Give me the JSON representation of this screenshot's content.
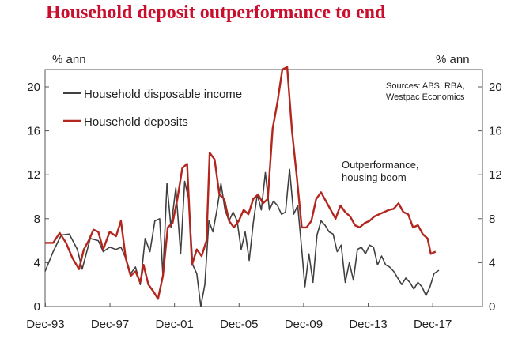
{
  "title": "Household deposit outperformance to end",
  "colors": {
    "title": "#c8102e",
    "income": "#404040",
    "deposits": "#b3261e"
  },
  "chart_data": {
    "type": "line",
    "x_label_left": "% ann",
    "y_label_right": "% ann",
    "y_range": [
      0,
      22
    ],
    "y_ticks": [
      0,
      4,
      8,
      12,
      16,
      20
    ],
    "x_range": [
      1993.9,
      2021.0
    ],
    "x_ticks": [
      "Dec-93",
      "Dec-97",
      "Dec-01",
      "Dec-05",
      "Dec-09",
      "Dec-13",
      "Dec-17"
    ],
    "x_tick_years": [
      1993.92,
      1997.92,
      2001.92,
      2005.92,
      2009.92,
      2013.92,
      2017.92
    ],
    "legend": [
      "Household disposable income",
      "Household deposits"
    ],
    "sources": [
      "Sources: ABS, RBA,",
      "Westpac Economics"
    ],
    "annotation": [
      "Outperformance,",
      "housing boom"
    ],
    "grid": false,
    "series": [
      {
        "name": "Household disposable income",
        "color": "#404040",
        "points": [
          [
            1993.9,
            3.2
          ],
          [
            1994.4,
            5.0
          ],
          [
            1994.9,
            6.5
          ],
          [
            1995.4,
            6.6
          ],
          [
            1995.9,
            5.2
          ],
          [
            1996.2,
            3.4
          ],
          [
            1996.7,
            6.2
          ],
          [
            1997.2,
            6.0
          ],
          [
            1997.5,
            5.0
          ],
          [
            1997.9,
            5.4
          ],
          [
            1998.3,
            5.2
          ],
          [
            1998.6,
            5.4
          ],
          [
            1998.9,
            4.4
          ],
          [
            1999.2,
            3.0
          ],
          [
            1999.5,
            3.6
          ],
          [
            1999.8,
            2.0
          ],
          [
            2000.1,
            6.2
          ],
          [
            2000.4,
            5.0
          ],
          [
            2000.7,
            7.8
          ],
          [
            2001.0,
            8.0
          ],
          [
            2001.2,
            2.8
          ],
          [
            2001.45,
            11.2
          ],
          [
            2001.7,
            7.2
          ],
          [
            2002.0,
            10.8
          ],
          [
            2002.3,
            4.8
          ],
          [
            2002.55,
            11.4
          ],
          [
            2002.8,
            9.8
          ],
          [
            2003.05,
            3.8
          ],
          [
            2003.3,
            3.0
          ],
          [
            2003.55,
            0.0
          ],
          [
            2003.8,
            2.0
          ],
          [
            2004.05,
            7.8
          ],
          [
            2004.3,
            6.8
          ],
          [
            2004.55,
            8.8
          ],
          [
            2004.8,
            11.2
          ],
          [
            2005.05,
            8.8
          ],
          [
            2005.3,
            7.8
          ],
          [
            2005.55,
            8.6
          ],
          [
            2005.8,
            7.8
          ],
          [
            2006.05,
            5.2
          ],
          [
            2006.3,
            6.8
          ],
          [
            2006.55,
            4.2
          ],
          [
            2006.8,
            7.6
          ],
          [
            2007.05,
            10.2
          ],
          [
            2007.3,
            8.8
          ],
          [
            2007.55,
            12.2
          ],
          [
            2007.8,
            8.8
          ],
          [
            2008.05,
            9.6
          ],
          [
            2008.3,
            9.2
          ],
          [
            2008.55,
            8.4
          ],
          [
            2008.8,
            8.6
          ],
          [
            2009.05,
            12.5
          ],
          [
            2009.3,
            8.4
          ],
          [
            2009.55,
            9.2
          ],
          [
            2009.8,
            5.2
          ],
          [
            2010.0,
            1.8
          ],
          [
            2010.25,
            4.8
          ],
          [
            2010.5,
            2.2
          ],
          [
            2010.75,
            6.5
          ],
          [
            2011.0,
            7.8
          ],
          [
            2011.25,
            7.4
          ],
          [
            2011.5,
            6.8
          ],
          [
            2011.75,
            6.6
          ],
          [
            2012.0,
            5.0
          ],
          [
            2012.25,
            5.6
          ],
          [
            2012.5,
            2.2
          ],
          [
            2012.75,
            4.0
          ],
          [
            2013.0,
            2.4
          ],
          [
            2013.25,
            5.2
          ],
          [
            2013.5,
            5.4
          ],
          [
            2013.75,
            4.8
          ],
          [
            2014.0,
            5.6
          ],
          [
            2014.25,
            5.4
          ],
          [
            2014.5,
            3.8
          ],
          [
            2014.75,
            4.6
          ],
          [
            2015.0,
            3.8
          ],
          [
            2015.25,
            3.6
          ],
          [
            2015.5,
            3.2
          ],
          [
            2015.75,
            2.6
          ],
          [
            2016.0,
            2.0
          ],
          [
            2016.25,
            2.6
          ],
          [
            2016.5,
            2.2
          ],
          [
            2016.75,
            1.6
          ],
          [
            2017.0,
            2.2
          ],
          [
            2017.25,
            1.8
          ],
          [
            2017.5,
            1.0
          ],
          [
            2017.75,
            1.8
          ],
          [
            2018.0,
            3.0
          ],
          [
            2018.3,
            3.3
          ]
        ]
      },
      {
        "name": "Household deposits",
        "color": "#b3261e",
        "points": [
          [
            1993.9,
            5.8
          ],
          [
            1994.4,
            5.8
          ],
          [
            1994.8,
            6.7
          ],
          [
            1995.2,
            5.8
          ],
          [
            1995.6,
            4.4
          ],
          [
            1996.0,
            3.4
          ],
          [
            1996.3,
            5.2
          ],
          [
            1996.6,
            6.0
          ],
          [
            1996.9,
            7.0
          ],
          [
            1997.2,
            6.8
          ],
          [
            1997.5,
            5.2
          ],
          [
            1997.9,
            6.8
          ],
          [
            1998.3,
            6.4
          ],
          [
            1998.6,
            7.8
          ],
          [
            1998.9,
            4.4
          ],
          [
            1999.2,
            2.8
          ],
          [
            1999.5,
            3.2
          ],
          [
            1999.8,
            2.2
          ],
          [
            2000.0,
            3.8
          ],
          [
            2000.3,
            2.0
          ],
          [
            2000.6,
            1.4
          ],
          [
            2000.9,
            0.7
          ],
          [
            2001.2,
            2.8
          ],
          [
            2001.5,
            7.2
          ],
          [
            2001.8,
            7.6
          ],
          [
            2002.1,
            9.8
          ],
          [
            2002.4,
            12.6
          ],
          [
            2002.7,
            13.0
          ],
          [
            2003.0,
            3.8
          ],
          [
            2003.3,
            5.2
          ],
          [
            2003.6,
            4.6
          ],
          [
            2003.9,
            6.0
          ],
          [
            2004.1,
            14.0
          ],
          [
            2004.4,
            13.4
          ],
          [
            2004.7,
            10.2
          ],
          [
            2005.0,
            9.8
          ],
          [
            2005.3,
            7.8
          ],
          [
            2005.6,
            7.2
          ],
          [
            2005.9,
            7.8
          ],
          [
            2006.2,
            8.8
          ],
          [
            2006.5,
            8.4
          ],
          [
            2006.8,
            9.8
          ],
          [
            2007.1,
            10.2
          ],
          [
            2007.4,
            9.4
          ],
          [
            2007.7,
            9.8
          ],
          [
            2008.0,
            16.2
          ],
          [
            2008.3,
            18.6
          ],
          [
            2008.6,
            21.6
          ],
          [
            2008.9,
            21.8
          ],
          [
            2009.2,
            16.0
          ],
          [
            2009.5,
            11.8
          ],
          [
            2009.8,
            7.2
          ],
          [
            2010.1,
            7.2
          ],
          [
            2010.4,
            7.8
          ],
          [
            2010.7,
            9.8
          ],
          [
            2011.0,
            10.4
          ],
          [
            2011.3,
            9.6
          ],
          [
            2011.6,
            8.8
          ],
          [
            2011.9,
            8.0
          ],
          [
            2012.2,
            9.2
          ],
          [
            2012.5,
            8.6
          ],
          [
            2012.8,
            8.2
          ],
          [
            2013.1,
            7.4
          ],
          [
            2013.4,
            7.2
          ],
          [
            2013.7,
            7.6
          ],
          [
            2014.0,
            7.8
          ],
          [
            2014.3,
            8.2
          ],
          [
            2014.6,
            8.4
          ],
          [
            2014.9,
            8.6
          ],
          [
            2015.2,
            8.8
          ],
          [
            2015.5,
            8.9
          ],
          [
            2015.8,
            9.4
          ],
          [
            2016.1,
            8.6
          ],
          [
            2016.4,
            8.4
          ],
          [
            2016.7,
            7.2
          ],
          [
            2017.0,
            7.4
          ],
          [
            2017.3,
            6.6
          ],
          [
            2017.6,
            6.2
          ],
          [
            2017.8,
            4.8
          ],
          [
            2018.1,
            5.0
          ]
        ]
      }
    ]
  }
}
